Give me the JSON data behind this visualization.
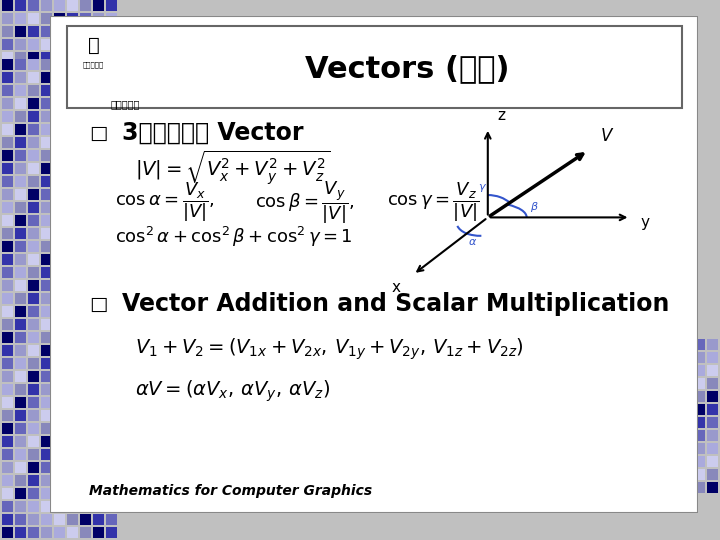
{
  "title": "Vectors (계속)",
  "bg_color": "#ffffff",
  "slide_bg": "#f0f0f0",
  "header_bg": "#ffffff",
  "border_color": "#999999",
  "bullet1": "3차원에서의 Vector",
  "bullet2": "Vector Addition and Scalar Multiplication",
  "footer": "Mathematics for Computer Graphics",
  "formula1": "|V| = \\sqrt{V_x^2 + V_y^2 + V_z^2}",
  "formula2a": "\\cos\\alpha = \\frac{V_x}{|V|},",
  "formula2b": "\\cos\\beta = \\frac{V_y}{|V|},",
  "formula2c": "\\cos\\gamma = \\frac{V_z}{|V|}",
  "formula3": "\\cos^2\\alpha + \\cos^2\\beta + \\cos^2\\gamma = 1",
  "formula4": "V_1 + V_2 = (V_{1x}+V_{2x}, V_{1y}+V_{2y}, V_{1z}+V_{2z})",
  "formula5": "\\alpha V = (\\alpha V_x, \\alpha V_y, \\alpha V_z)",
  "tile_colors": [
    "#3333aa",
    "#6666cc",
    "#9999cc",
    "#ccccdd"
  ],
  "axis_color": "#000000",
  "vector_color": "#000000",
  "arc_color": "#3355cc",
  "title_fontsize": 22,
  "bullet_fontsize": 16,
  "formula_fontsize": 13,
  "footer_fontsize": 10
}
